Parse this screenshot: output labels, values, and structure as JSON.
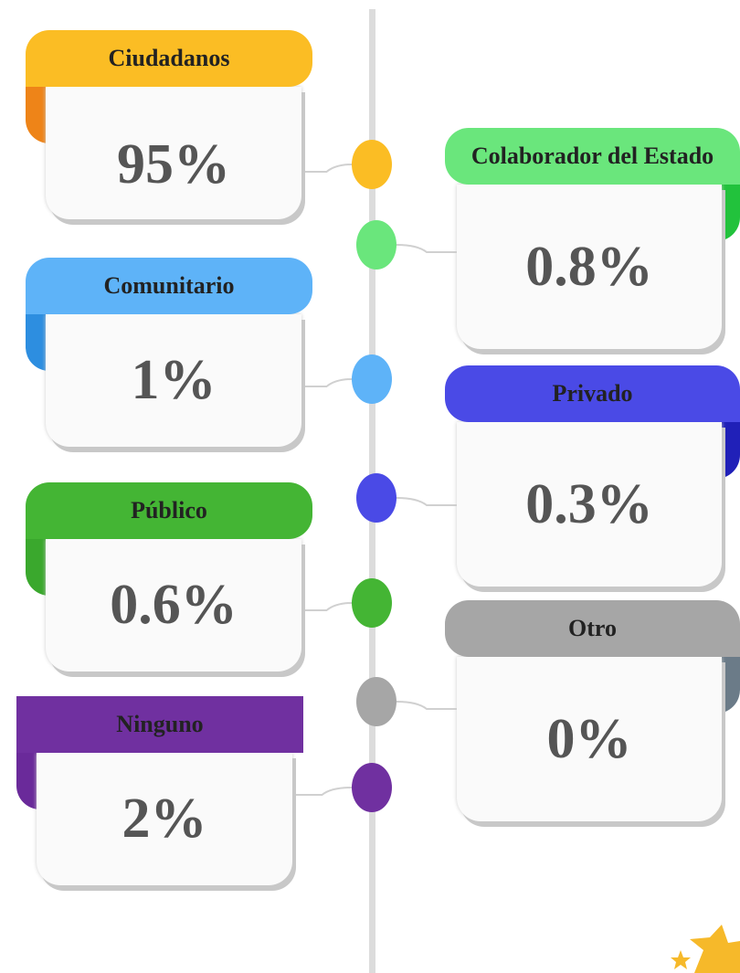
{
  "items": [
    {
      "label": "Ciudadanos",
      "value": "95%",
      "color": "#fbbd24",
      "tab_color": "#ee8418"
    },
    {
      "label": "Colaborador del Estado",
      "value": "0.8%",
      "color": "#6ae67c",
      "tab_color": "#22c23c"
    },
    {
      "label": "Comunitario",
      "value": "1%",
      "color": "#5eb3f8",
      "tab_color": "#2d8ee0"
    },
    {
      "label": "Privado",
      "value": "0.3%",
      "color": "#4a4ae6",
      "tab_color": "#2020b8"
    },
    {
      "label": "Público",
      "value": "0.6%",
      "color": "#44b534",
      "tab_color": "#3aa82d"
    },
    {
      "label": "Otro",
      "value": "0%",
      "color": "#a6a6a6",
      "tab_color": "#6b7b88"
    },
    {
      "label": "Ninguno",
      "value": "2%",
      "color": "#7030a0",
      "tab_color": "#6a2a9a"
    }
  ]
}
